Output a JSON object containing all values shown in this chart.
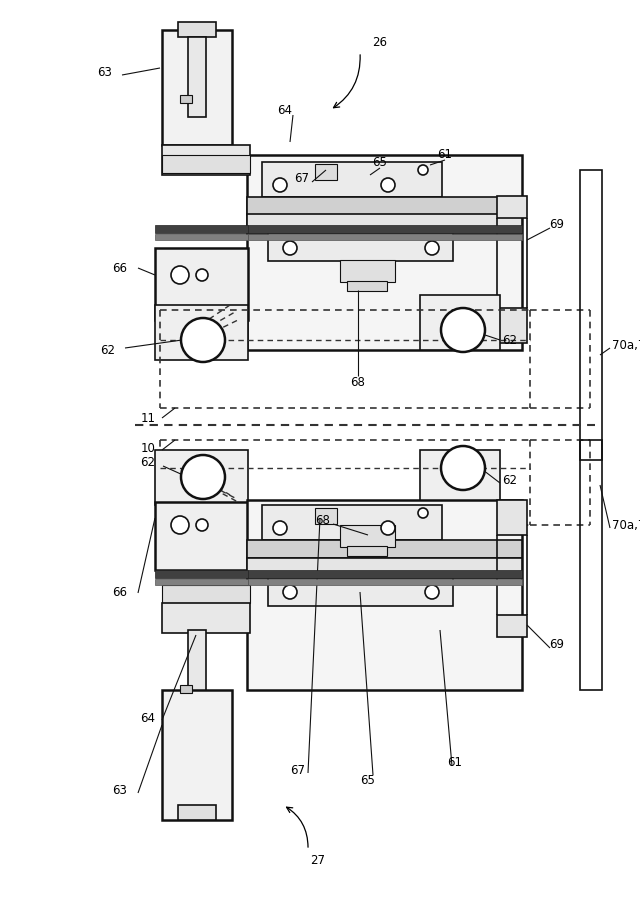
{
  "bg_color": "#ffffff",
  "line_color": "#111111",
  "fig_width": 6.4,
  "fig_height": 8.98,
  "dpi": 100
}
